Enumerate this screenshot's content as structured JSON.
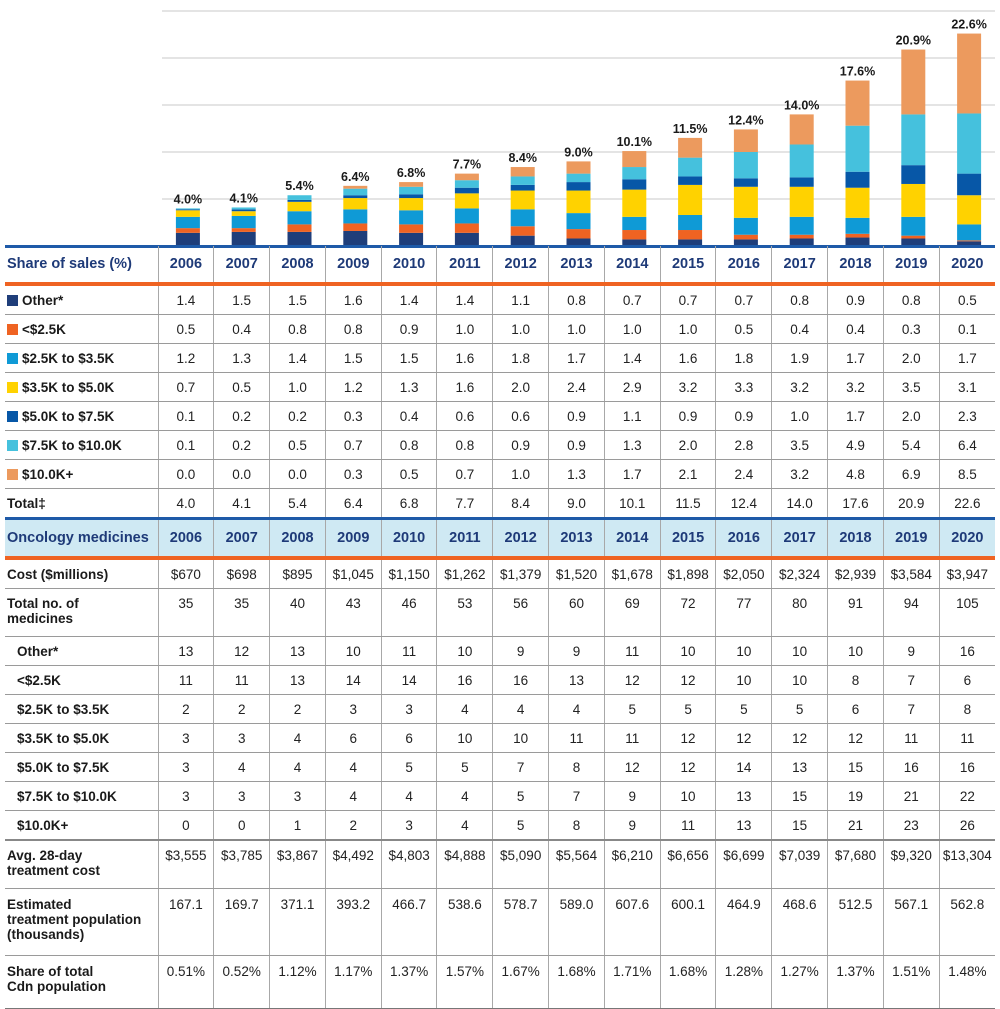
{
  "chart_data": {
    "type": "bar",
    "stacked": true,
    "title": "",
    "xlabel": "",
    "ylabel": "Share of sales (%)",
    "ylim": [
      0,
      25
    ],
    "gridlines": [
      5,
      10,
      15,
      20,
      25
    ],
    "grid": true,
    "categories": [
      "2006",
      "2007",
      "2008",
      "2009",
      "2010",
      "2011",
      "2012",
      "2013",
      "2014",
      "2015",
      "2016",
      "2017",
      "2018",
      "2019",
      "2020"
    ],
    "series": [
      {
        "name": "Other*",
        "color": "#1f3e7a",
        "values": [
          1.4,
          1.5,
          1.5,
          1.6,
          1.4,
          1.4,
          1.1,
          0.8,
          0.7,
          0.7,
          0.7,
          0.8,
          0.9,
          0.8,
          0.5
        ]
      },
      {
        "name": "<$2.5K",
        "color": "#ef6322",
        "values": [
          0.5,
          0.4,
          0.8,
          0.8,
          0.9,
          1.0,
          1.0,
          1.0,
          1.0,
          1.0,
          0.5,
          0.4,
          0.4,
          0.3,
          0.1
        ]
      },
      {
        "name": "$2.5K to $3.5K",
        "color": "#0f9ad6",
        "values": [
          1.2,
          1.3,
          1.4,
          1.5,
          1.5,
          1.6,
          1.8,
          1.7,
          1.4,
          1.6,
          1.8,
          1.9,
          1.7,
          2.0,
          1.7
        ]
      },
      {
        "name": "$3.5K to $5.0K",
        "color": "#ffd200",
        "values": [
          0.7,
          0.5,
          1.0,
          1.2,
          1.3,
          1.6,
          2.0,
          2.4,
          2.9,
          3.2,
          3.3,
          3.2,
          3.2,
          3.5,
          3.1
        ]
      },
      {
        "name": "$5.0K to $7.5K",
        "color": "#0757a7",
        "values": [
          0.1,
          0.2,
          0.2,
          0.3,
          0.4,
          0.6,
          0.6,
          0.9,
          1.1,
          0.9,
          0.9,
          1.0,
          1.7,
          2.0,
          2.3
        ]
      },
      {
        "name": "$7.5K to $10.0K",
        "color": "#45c1dd",
        "values": [
          0.1,
          0.2,
          0.5,
          0.7,
          0.8,
          0.8,
          0.9,
          0.9,
          1.3,
          2.0,
          2.8,
          3.5,
          4.9,
          5.4,
          6.4
        ]
      },
      {
        "name": "$10.0K+",
        "color": "#ec9a5e",
        "values": [
          0.0,
          0.0,
          0.0,
          0.3,
          0.5,
          0.7,
          1.0,
          1.3,
          1.7,
          2.1,
          2.4,
          3.2,
          4.8,
          6.9,
          8.5
        ]
      }
    ],
    "totals": [
      4.0,
      4.1,
      5.4,
      6.4,
      6.8,
      7.7,
      8.4,
      9.0,
      10.1,
      11.5,
      12.4,
      14.0,
      17.6,
      20.9,
      22.6
    ],
    "total_labels": [
      "4.0%",
      "4.1%",
      "5.4%",
      "6.4%",
      "6.8%",
      "7.7%",
      "8.4%",
      "9.0%",
      "10.1%",
      "11.5%",
      "12.4%",
      "14.0%",
      "17.6%",
      "20.9%",
      "22.6%"
    ]
  },
  "share_table": {
    "header_label": "Share of sales (%)",
    "years": [
      "2006",
      "2007",
      "2008",
      "2009",
      "2010",
      "2011",
      "2012",
      "2013",
      "2014",
      "2015",
      "2016",
      "2017",
      "2018",
      "2019",
      "2020"
    ],
    "rows": [
      {
        "label": "Other*",
        "color": "#1f3e7a",
        "values": [
          "1.4",
          "1.5",
          "1.5",
          "1.6",
          "1.4",
          "1.4",
          "1.1",
          "0.8",
          "0.7",
          "0.7",
          "0.7",
          "0.8",
          "0.9",
          "0.8",
          "0.5"
        ]
      },
      {
        "label": "<$2.5K",
        "color": "#ef6322",
        "values": [
          "0.5",
          "0.4",
          "0.8",
          "0.8",
          "0.9",
          "1.0",
          "1.0",
          "1.0",
          "1.0",
          "1.0",
          "0.5",
          "0.4",
          "0.4",
          "0.3",
          "0.1"
        ]
      },
      {
        "label": "$2.5K to $3.5K",
        "color": "#0f9ad6",
        "values": [
          "1.2",
          "1.3",
          "1.4",
          "1.5",
          "1.5",
          "1.6",
          "1.8",
          "1.7",
          "1.4",
          "1.6",
          "1.8",
          "1.9",
          "1.7",
          "2.0",
          "1.7"
        ]
      },
      {
        "label": "$3.5K to $5.0K",
        "color": "#ffd200",
        "values": [
          "0.7",
          "0.5",
          "1.0",
          "1.2",
          "1.3",
          "1.6",
          "2.0",
          "2.4",
          "2.9",
          "3.2",
          "3.3",
          "3.2",
          "3.2",
          "3.5",
          "3.1"
        ]
      },
      {
        "label": "$5.0K to $7.5K",
        "color": "#0757a7",
        "values": [
          "0.1",
          "0.2",
          "0.2",
          "0.3",
          "0.4",
          "0.6",
          "0.6",
          "0.9",
          "1.1",
          "0.9",
          "0.9",
          "1.0",
          "1.7",
          "2.0",
          "2.3"
        ]
      },
      {
        "label": "$7.5K to $10.0K",
        "color": "#45c1dd",
        "values": [
          "0.1",
          "0.2",
          "0.5",
          "0.7",
          "0.8",
          "0.8",
          "0.9",
          "0.9",
          "1.3",
          "2.0",
          "2.8",
          "3.5",
          "4.9",
          "5.4",
          "6.4"
        ]
      },
      {
        "label": "$10.0K+",
        "color": "#ec9a5e",
        "values": [
          "0.0",
          "0.0",
          "0.0",
          "0.3",
          "0.5",
          "0.7",
          "1.0",
          "1.3",
          "1.7",
          "2.1",
          "2.4",
          "3.2",
          "4.8",
          "6.9",
          "8.5"
        ]
      },
      {
        "label": "Total‡",
        "color": "",
        "values": [
          "4.0",
          "4.1",
          "5.4",
          "6.4",
          "6.8",
          "7.7",
          "8.4",
          "9.0",
          "10.1",
          "11.5",
          "12.4",
          "14.0",
          "17.6",
          "20.9",
          "22.6"
        ]
      }
    ]
  },
  "oncology_table": {
    "header_label": "Oncology medicines",
    "years": [
      "2006",
      "2007",
      "2008",
      "2009",
      "2010",
      "2011",
      "2012",
      "2013",
      "2014",
      "2015",
      "2016",
      "2017",
      "2018",
      "2019",
      "2020"
    ],
    "cost": {
      "label": "Cost ($millions)",
      "values": [
        "$670",
        "$698",
        "$895",
        "$1,045",
        "$1,150",
        "$1,262",
        "$1,379",
        "$1,520",
        "$1,678",
        "$1,898",
        "$2,050",
        "$2,324",
        "$2,939",
        "$3,584",
        "$3,947"
      ]
    },
    "total_medicines": {
      "label_line1": "Total no. of",
      "label_line2": "medicines",
      "values": [
        "35",
        "35",
        "40",
        "43",
        "46",
        "53",
        "56",
        "60",
        "69",
        "72",
        "77",
        "80",
        "91",
        "94",
        "105"
      ]
    },
    "breakdown": [
      {
        "label": "Other*",
        "values": [
          "13",
          "12",
          "13",
          "10",
          "11",
          "10",
          "9",
          "9",
          "11",
          "10",
          "10",
          "10",
          "10",
          "9",
          "16"
        ]
      },
      {
        "label": "<$2.5K",
        "values": [
          "11",
          "11",
          "13",
          "14",
          "14",
          "16",
          "16",
          "13",
          "12",
          "12",
          "10",
          "10",
          "8",
          "7",
          "6"
        ]
      },
      {
        "label": "$2.5K to $3.5K",
        "values": [
          "2",
          "2",
          "2",
          "3",
          "3",
          "4",
          "4",
          "4",
          "5",
          "5",
          "5",
          "5",
          "6",
          "7",
          "8"
        ]
      },
      {
        "label": "$3.5K to $5.0K",
        "values": [
          "3",
          "3",
          "4",
          "6",
          "6",
          "10",
          "10",
          "11",
          "11",
          "12",
          "12",
          "12",
          "12",
          "11",
          "11"
        ]
      },
      {
        "label": "$5.0K to $7.5K",
        "values": [
          "3",
          "4",
          "4",
          "4",
          "5",
          "5",
          "7",
          "8",
          "12",
          "12",
          "14",
          "13",
          "15",
          "16",
          "16"
        ]
      },
      {
        "label": "$7.5K to $10.0K",
        "values": [
          "3",
          "3",
          "3",
          "4",
          "4",
          "4",
          "5",
          "7",
          "9",
          "10",
          "13",
          "15",
          "19",
          "21",
          "22"
        ]
      },
      {
        "label": "$10.0K+",
        "values": [
          "0",
          "0",
          "1",
          "2",
          "3",
          "4",
          "5",
          "8",
          "9",
          "11",
          "13",
          "15",
          "21",
          "23",
          "26"
        ]
      }
    ],
    "avg_cost": {
      "label_line1": "Avg. 28-day",
      "label_line2": "treatment cost",
      "values": [
        "$3,555",
        "$3,785",
        "$3,867",
        "$4,492",
        "$4,803",
        "$4,888",
        "$5,090",
        "$5,564",
        "$6,210",
        "$6,656",
        "$6,699",
        "$7,039",
        "$7,680",
        "$9,320",
        "$13,304"
      ]
    },
    "population": {
      "label_line1": "Estimated",
      "label_line2": "treatment population",
      "label_line3": "(thousands)",
      "values": [
        "167.1",
        "169.7",
        "371.1",
        "393.2",
        "466.7",
        "538.6",
        "578.7",
        "589.0",
        "607.6",
        "600.1",
        "464.9",
        "468.6",
        "512.5",
        "567.1",
        "562.8"
      ]
    },
    "share_population": {
      "label_line1": "Share of total",
      "label_line2": "Cdn population",
      "values": [
        "0.51%",
        "0.52%",
        "1.12%",
        "1.17%",
        "1.37%",
        "1.57%",
        "1.67%",
        "1.68%",
        "1.71%",
        "1.68%",
        "1.28%",
        "1.27%",
        "1.37%",
        "1.51%",
        "1.48%"
      ]
    }
  }
}
